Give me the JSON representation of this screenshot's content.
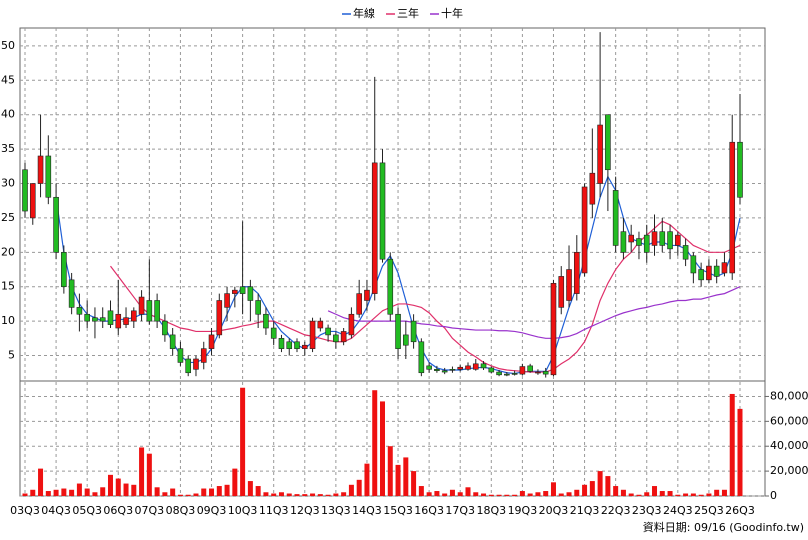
{
  "chart_data": {
    "type": "candlestick",
    "categories": [
      "03Q3",
      null,
      null,
      null,
      "04Q3",
      null,
      null,
      null,
      "05Q3",
      null,
      null,
      null,
      "06Q3",
      null,
      null,
      null,
      "07Q3",
      null,
      null,
      null,
      "08Q3",
      null,
      null,
      null,
      "09Q3",
      null,
      null,
      null,
      "10Q3",
      null,
      null,
      null,
      "11Q3",
      null,
      null,
      null,
      "12Q3",
      null,
      null,
      null,
      "13Q3",
      null,
      null,
      null,
      "14Q3",
      null,
      null,
      null,
      "15Q3",
      null,
      null,
      null,
      "16Q3",
      null,
      null,
      null,
      "17Q3",
      null,
      null,
      null,
      "18Q3",
      null,
      null,
      null,
      "19Q3",
      null,
      null,
      null,
      "20Q3",
      null,
      null,
      null,
      "21Q3",
      null,
      null,
      null,
      "22Q3",
      null,
      null,
      null,
      "23Q3",
      null,
      null,
      null,
      "24Q3",
      null,
      null,
      null,
      "25Q3",
      null,
      null,
      null,
      "26Q3"
    ],
    "open": [
      32,
      25,
      30,
      34,
      28,
      20,
      16,
      12,
      11,
      10.5,
      10.5,
      11.5,
      9,
      9.5,
      10,
      11,
      13,
      13,
      10,
      8,
      6,
      4.5,
      3,
      4,
      6,
      8,
      12,
      14,
      15,
      15,
      13,
      11,
      9,
      7.5,
      7,
      7,
      6,
      6,
      9,
      9,
      8,
      7,
      8,
      11,
      13,
      14,
      33,
      19,
      11,
      8,
      10,
      7,
      3.5,
      3,
      2.8,
      3,
      3,
      3,
      3,
      3.8,
      3.2,
      2.6,
      2.3,
      2.4,
      2.3,
      3.5,
      2.5,
      2.7,
      2.2,
      12,
      13,
      14,
      17,
      27,
      30,
      40,
      29,
      23,
      21.5,
      22,
      22.5,
      21,
      23,
      23,
      21,
      21,
      19.5,
      17.5,
      16,
      18,
      17,
      17,
      36
    ],
    "high": [
      33,
      30,
      40,
      37,
      30,
      21,
      17,
      14,
      13,
      12,
      12,
      13,
      16,
      12,
      12,
      14.5,
      19,
      14,
      11,
      9,
      7,
      5,
      5,
      7,
      9,
      14,
      15,
      15,
      24.5,
      16,
      14,
      12,
      10,
      8,
      7.5,
      7.5,
      7,
      10.5,
      10.5,
      9.5,
      8.5,
      9,
      12,
      16,
      16,
      45.5,
      35,
      20,
      12,
      10,
      11,
      7.5,
      4,
      3.5,
      3.2,
      3.4,
      3.6,
      4,
      4.5,
      4.2,
      3.4,
      2.9,
      2.6,
      2.8,
      3.8,
      3.8,
      3,
      3.2,
      16,
      18,
      21,
      22.5,
      30,
      38,
      52,
      40,
      31,
      25,
      24,
      23,
      24,
      25.5,
      25,
      24,
      23,
      22,
      20,
      18.5,
      19,
      19,
      20,
      40,
      43
    ],
    "low": [
      25,
      24,
      28,
      27,
      19,
      14,
      11,
      8.5,
      9,
      7.5,
      9,
      9,
      8,
      9,
      9,
      10,
      9.5,
      9,
      7,
      5,
      3.5,
      2,
      2,
      3,
      5,
      7.5,
      10,
      12,
      11,
      10,
      9,
      8,
      6.5,
      5.5,
      5,
      5.5,
      5,
      5.5,
      8.5,
      7,
      6,
      6.5,
      7.5,
      10.5,
      11.5,
      13,
      18.5,
      10,
      4.5,
      4.5,
      6,
      2,
      2.5,
      2.5,
      2.3,
      2.5,
      2.7,
      2.8,
      2.8,
      2.9,
      2.4,
      2,
      2,
      2.1,
      2.1,
      2.5,
      2.2,
      1.8,
      2,
      11,
      12,
      13,
      16.5,
      25,
      28,
      26,
      20,
      19,
      20,
      19,
      18.5,
      19.5,
      20,
      19,
      19.5,
      18,
      15.5,
      15,
      15.5,
      15.5,
      16.5,
      16,
      27
    ],
    "close": [
      26,
      30,
      34,
      28,
      20,
      15,
      12,
      11,
      10,
      10,
      10,
      9.5,
      11,
      10.5,
      11.5,
      13.5,
      10,
      10,
      8,
      6,
      4,
      2.5,
      4.5,
      6,
      8,
      13,
      14,
      14.5,
      14,
      13,
      11,
      9,
      7.5,
      6,
      6,
      6,
      6.5,
      10,
      10,
      8,
      7,
      8.5,
      11,
      14,
      14.5,
      33,
      19,
      11,
      6,
      6.5,
      7,
      2.5,
      3,
      2.8,
      2.6,
      2.9,
      3.3,
      3.5,
      3.8,
      3.2,
      2.6,
      2.2,
      2.2,
      2.3,
      3.4,
      2.7,
      2.6,
      2.3,
      15.5,
      16.5,
      17.5,
      20,
      29.5,
      31.5,
      38.5,
      32,
      21,
      20,
      22.5,
      21,
      20,
      23,
      21,
      20.5,
      22.5,
      19,
      17,
      16,
      18,
      16.5,
      18.5,
      36,
      28
    ],
    "up_color": "#ee1111",
    "down_color": "#22bb22",
    "series": [
      {
        "name": "年線",
        "color": "#1f5fd6",
        "values": [
          null,
          null,
          null,
          null,
          28,
          20,
          15,
          12.5,
          11,
          10.5,
          10,
          10,
          10.2,
          10.3,
          10.5,
          11,
          11,
          10.5,
          9,
          7,
          5,
          4,
          4,
          4.5,
          6,
          8.5,
          11,
          13.5,
          15,
          15,
          14,
          12,
          10,
          8.5,
          7.5,
          6.5,
          6,
          7,
          8,
          8.5,
          8.5,
          8,
          8.5,
          10,
          12,
          15,
          18,
          19.5,
          17,
          13,
          9,
          6,
          4,
          3.2,
          2.9,
          2.9,
          2.9,
          3.1,
          3.2,
          3.3,
          3.1,
          2.8,
          2.5,
          2.4,
          2.6,
          2.7,
          2.7,
          2.7,
          5,
          8.5,
          12,
          15,
          19,
          23.5,
          28,
          31,
          29,
          25,
          22,
          21.5,
          21,
          21.5,
          21.5,
          21,
          21,
          20.5,
          19,
          17.5,
          17,
          16.5,
          17,
          20,
          25
        ]
      },
      {
        "name": "三年",
        "color": "#e0306a",
        "values": [
          null,
          null,
          null,
          null,
          null,
          null,
          null,
          null,
          null,
          null,
          null,
          18,
          16.5,
          15,
          13.5,
          12,
          11,
          10.5,
          10,
          9.5,
          9,
          8.8,
          8.5,
          8.5,
          8.5,
          8.6,
          8.8,
          9,
          9.3,
          9.5,
          9.8,
          10,
          10,
          9.5,
          9,
          8.5,
          8,
          7.8,
          7.5,
          7.2,
          7,
          7,
          7.5,
          8.5,
          9.5,
          10.5,
          11.5,
          12,
          12.5,
          12.5,
          12.3,
          12,
          11.2,
          10,
          9,
          7.5,
          6.5,
          5.5,
          4.8,
          4,
          3.5,
          3.1,
          2.9,
          2.8,
          2.7,
          2.6,
          2.6,
          2.6,
          3,
          3.8,
          4.5,
          5.5,
          7,
          9.5,
          13,
          15.5,
          17.5,
          19,
          20,
          21.5,
          22.5,
          23.5,
          24.5,
          24,
          23,
          22,
          21,
          20.5,
          20,
          20,
          20,
          20.5,
          21
        ]
      },
      {
        "name": "十年",
        "color": "#9932cc",
        "values": [
          null,
          null,
          null,
          null,
          null,
          null,
          null,
          null,
          null,
          null,
          null,
          null,
          null,
          null,
          null,
          null,
          null,
          null,
          null,
          null,
          null,
          null,
          null,
          null,
          null,
          null,
          null,
          null,
          null,
          null,
          null,
          null,
          null,
          null,
          null,
          null,
          null,
          null,
          null,
          11.5,
          11,
          10.5,
          10.2,
          10,
          10,
          10,
          10,
          10,
          10,
          10,
          9.8,
          9.6,
          9.5,
          9.3,
          9.2,
          9,
          8.9,
          8.8,
          8.7,
          8.7,
          8.7,
          8.6,
          8.6,
          8.5,
          8.3,
          8,
          7.7,
          7.5,
          7.5,
          7.6,
          7.8,
          8.2,
          8.8,
          9.3,
          9.8,
          10.3,
          10.8,
          11.2,
          11.5,
          11.8,
          12,
          12.3,
          12.5,
          12.8,
          13,
          13,
          13.2,
          13.2,
          13.5,
          13.8,
          14,
          14.5,
          15
        ]
      }
    ],
    "ylim": [
      1.3,
      52.6
    ],
    "yticks": [
      5,
      10,
      15,
      20,
      25,
      30,
      35,
      40,
      45,
      50
    ],
    "grid": true,
    "volume": {
      "color": "#ee1111",
      "values": [
        2000,
        5000,
        22000,
        4000,
        5000,
        6000,
        5000,
        10000,
        6000,
        3000,
        7000,
        17000,
        14000,
        10000,
        9000,
        39000,
        34000,
        7000,
        3000,
        6000,
        1000,
        1000,
        2000,
        6000,
        6000,
        8000,
        9000,
        22000,
        87000,
        12000,
        8000,
        3000,
        2000,
        3000,
        2000,
        1500,
        1500,
        2000,
        1500,
        1000,
        2000,
        3000,
        9000,
        13000,
        26000,
        85000,
        76000,
        40000,
        25000,
        31000,
        20000,
        8000,
        3000,
        4000,
        2000,
        5000,
        3000,
        7000,
        3000,
        2000,
        1000,
        1000,
        1000,
        1000,
        4000,
        2000,
        3000,
        4000,
        11000,
        2000,
        3000,
        5000,
        9000,
        12000,
        20000,
        16000,
        8000,
        5000,
        2000,
        1000,
        3000,
        8000,
        4000,
        4000,
        1000,
        2000,
        2000,
        1000,
        2000,
        5000,
        5000,
        82000,
        70000
      ],
      "ylim": [
        0,
        90000
      ],
      "yticks": [
        0,
        {
          "value": 20000,
          "label": "20,000"
        },
        {
          "value": 40000,
          "label": "40,000"
        },
        {
          "value": 60000,
          "label": "60,000"
        },
        {
          "value": 80000,
          "label": "80,000"
        }
      ]
    },
    "footer": "資料日期: 09/16  (Goodinfo.tw)"
  }
}
